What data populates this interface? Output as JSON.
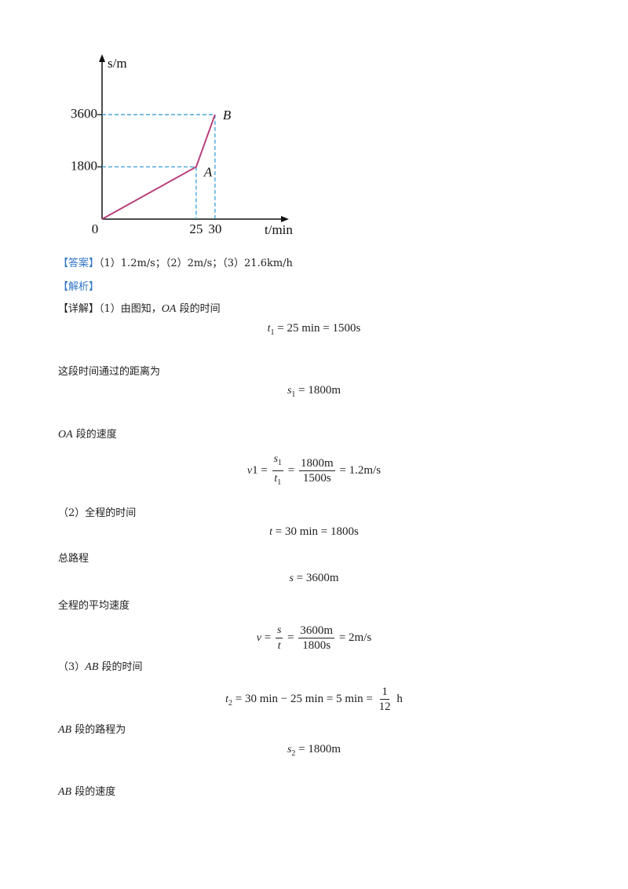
{
  "chart_data": {
    "type": "line",
    "x": [
      0,
      25,
      30
    ],
    "values": [
      0,
      1800,
      3600
    ],
    "point_labels": [
      null,
      "A",
      "B"
    ],
    "xlim": [
      0,
      49
    ],
    "ylim": [
      0,
      5600
    ],
    "xticks": [
      0,
      25,
      30
    ],
    "yticks": [
      1800,
      3600
    ],
    "x_label": "t/min",
    "y_label": "s/m",
    "color": "#b8407a",
    "guide_color": "#3aa0d8"
  },
  "document": {
    "items": [
      {
        "text": [
          {
            "label": "【答案】"
          },
          "（1）1.2m/s；（2）2m/s；（3）21.6km/h"
        ]
      },
      {
        "text": [
          {
            "label": "【解析】"
          }
        ]
      },
      {
        "text": [
          "【详解】（1）由图知，",
          {
            "i": "OA"
          },
          " 段的时间"
        ]
      },
      {
        "formula": [
          {
            "i": "t"
          },
          {
            "sub": "1"
          },
          " = 25 min = 1500s"
        ]
      },
      {
        "text": [
          "这段时间通过的距离为"
        ]
      },
      {
        "formula": [
          {
            "i": "s"
          },
          {
            "sub": "1"
          },
          " = 1800m"
        ]
      },
      {
        "text": [
          {
            "i": "OA"
          },
          " 段的速度"
        ]
      },
      {
        "formula": [
          {
            "i": "v"
          },
          "1 = ",
          {
            "frac": [
              [
                {
                  "i": "s"
                },
                {
                  "sub": "1"
                }
              ],
              [
                {
                  "i": "t"
                },
                {
                  "sub": "1"
                }
              ]
            ]
          },
          " = ",
          {
            "frac": [
              [
                "1800m"
              ],
              [
                "1500s"
              ]
            ]
          },
          " = 1.2m/s"
        ]
      },
      {
        "text": [
          "（2）全程的时间"
        ]
      },
      {
        "formula": [
          {
            "i": "t"
          },
          " = 30 min = 1800s"
        ]
      },
      {
        "text": [
          "总路程"
        ]
      },
      {
        "formula": [
          {
            "i": "s"
          },
          " = 3600m"
        ]
      },
      {
        "text": [
          "全程的平均速度"
        ]
      },
      {
        "formula": [
          {
            "i": "v"
          },
          " = ",
          {
            "frac": [
              [
                {
                  "i": "s"
                }
              ],
              [
                {
                  "i": "t"
                }
              ]
            ]
          },
          " = ",
          {
            "frac": [
              [
                "3600m"
              ],
              [
                "1800s"
              ]
            ]
          },
          " = 2m/s"
        ]
      },
      {
        "text": [
          "（3）",
          {
            "i": "AB"
          },
          " 段的时间"
        ]
      },
      {
        "formula": [
          {
            "i": "t"
          },
          {
            "sub": "2"
          },
          " = 30 min − 25 min = 5 min = ",
          {
            "frac": [
              [
                "1"
              ],
              [
                "12"
              ]
            ]
          },
          " h"
        ]
      },
      {
        "text": [
          {
            "i": "AB"
          },
          " 段的路程为"
        ]
      },
      {
        "formula": [
          {
            "i": "s"
          },
          {
            "sub": "2"
          },
          " = 1800m"
        ]
      },
      {
        "text": [
          {
            "i": "AB"
          },
          " 段的速度"
        ]
      }
    ]
  }
}
